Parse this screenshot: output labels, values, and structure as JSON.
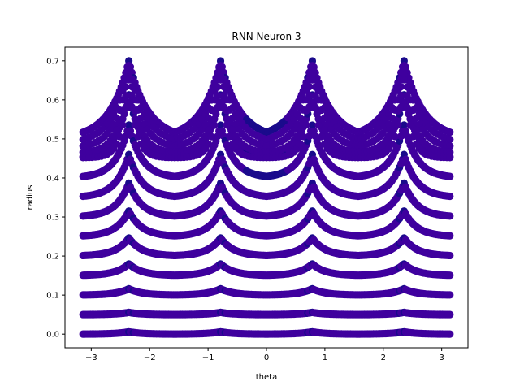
{
  "chart_data": {
    "type": "scatter",
    "title": "RNN Neuron 3",
    "xlabel": "theta",
    "ylabel": "radius",
    "xlim": [
      -3.45,
      3.45
    ],
    "ylim": [
      -0.035,
      0.735
    ],
    "xticks": [
      -3,
      -2,
      -1,
      0,
      1,
      2,
      3
    ],
    "yticks": [
      0.0,
      0.1,
      0.2,
      0.3,
      0.4,
      0.5,
      0.6,
      0.7
    ],
    "xtick_labels": [
      "−3",
      "−2",
      "−1",
      "0",
      "1",
      "2",
      "3"
    ],
    "ytick_labels": [
      "0.0",
      "0.1",
      "0.2",
      "0.3",
      "0.4",
      "0.5",
      "0.6",
      "0.7"
    ],
    "grid": false,
    "marker_color": "#3f009e",
    "marker_color_dark": "#1a0a8c",
    "theta_range": [
      -3.1416,
      3.1416
    ],
    "peak_thetas": [
      -2.356,
      -0.785,
      0.785,
      2.356
    ],
    "radius_levels": [
      0.0,
      0.05,
      0.1,
      0.15,
      0.2,
      0.25,
      0.3,
      0.35,
      0.4,
      0.45,
      0.5
    ],
    "peak_radius_max": 0.7
  }
}
